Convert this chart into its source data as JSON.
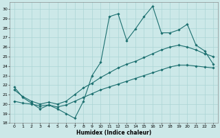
{
  "xlabel": "Humidex (Indice chaleur)",
  "background_color": "#cce8e8",
  "grid_color": "#aad4d4",
  "line_color": "#1a6e6e",
  "xlim": [
    -0.5,
    23.5
  ],
  "ylim": [
    18,
    30.7
  ],
  "yticks": [
    18,
    19,
    20,
    21,
    22,
    23,
    24,
    25,
    26,
    27,
    28,
    29,
    30
  ],
  "xticks": [
    0,
    1,
    2,
    3,
    4,
    5,
    6,
    7,
    8,
    9,
    10,
    11,
    12,
    13,
    14,
    15,
    16,
    17,
    18,
    19,
    20,
    21,
    22,
    23
  ],
  "series1_x": [
    0,
    1,
    2,
    3,
    4,
    5,
    6,
    7,
    8,
    9,
    10,
    11,
    12,
    13,
    14,
    15,
    16,
    17,
    18,
    19,
    20,
    21,
    22,
    23
  ],
  "series1_y": [
    21.8,
    20.7,
    20.1,
    19.5,
    19.9,
    19.5,
    19.0,
    18.5,
    20.3,
    23.0,
    24.4,
    29.2,
    29.5,
    26.7,
    27.9,
    29.2,
    30.3,
    27.5,
    27.5,
    27.8,
    28.4,
    26.2,
    25.6,
    24.2
  ],
  "series2_x": [
    0,
    1,
    2,
    3,
    4,
    5,
    6,
    7,
    8,
    9,
    10,
    11,
    12,
    13,
    14,
    15,
    16,
    17,
    18,
    19,
    20,
    21,
    22,
    23
  ],
  "series2_y": [
    21.5,
    20.8,
    20.3,
    20.0,
    20.2,
    20.0,
    20.3,
    21.0,
    21.7,
    22.2,
    22.8,
    23.3,
    23.8,
    24.2,
    24.5,
    24.9,
    25.3,
    25.7,
    26.0,
    26.2,
    26.0,
    25.7,
    25.3,
    25.0
  ],
  "series3_x": [
    0,
    1,
    2,
    3,
    4,
    5,
    6,
    7,
    8,
    9,
    10,
    11,
    12,
    13,
    14,
    15,
    16,
    17,
    18,
    19,
    20,
    21,
    22,
    23
  ],
  "series3_y": [
    20.3,
    20.1,
    20.0,
    19.8,
    19.9,
    19.7,
    19.9,
    20.3,
    20.7,
    21.1,
    21.5,
    21.8,
    22.1,
    22.4,
    22.7,
    23.0,
    23.3,
    23.6,
    23.9,
    24.1,
    24.1,
    24.0,
    23.9,
    23.8
  ]
}
